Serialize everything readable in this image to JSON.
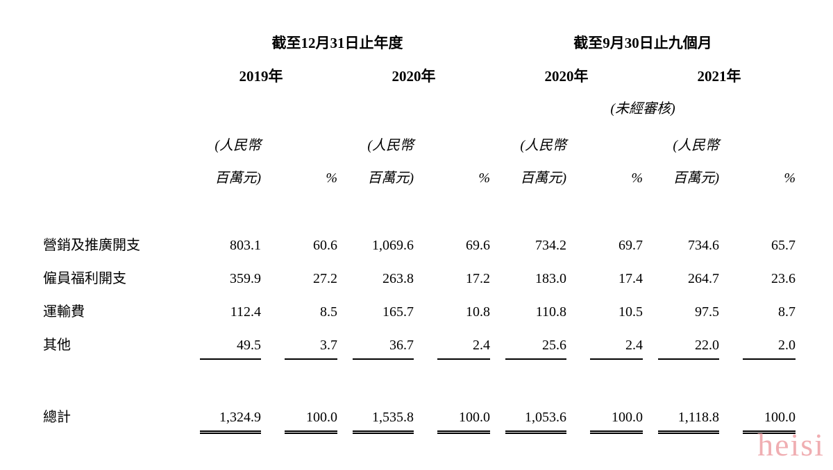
{
  "table": {
    "period_headers": [
      "截至12月31日止年度",
      "截至9月30日止九個月"
    ],
    "year_headers": [
      "2019年",
      "2020年",
      "2020年",
      "2021年"
    ],
    "unaudited_note": "(未經審核)",
    "unit_amount_line1": "(人民幣",
    "unit_amount_line2": "百萬元)",
    "unit_percent": "%",
    "rows": [
      {
        "label": "營銷及推廣開支",
        "values": [
          "803.1",
          "60.6",
          "1,069.6",
          "69.6",
          "734.2",
          "69.7",
          "734.6",
          "65.7"
        ]
      },
      {
        "label": "僱員福利開支",
        "values": [
          "359.9",
          "27.2",
          "263.8",
          "17.2",
          "183.0",
          "17.4",
          "264.7",
          "23.6"
        ]
      },
      {
        "label": "運輸費",
        "values": [
          "112.4",
          "8.5",
          "165.7",
          "10.8",
          "110.8",
          "10.5",
          "97.5",
          "8.7"
        ]
      },
      {
        "label": "其他",
        "values": [
          "49.5",
          "3.7",
          "36.7",
          "2.4",
          "25.6",
          "2.4",
          "22.0",
          "2.0"
        ]
      }
    ],
    "total": {
      "label": "總計",
      "values": [
        "1,324.9",
        "100.0",
        "1,535.8",
        "100.0",
        "1,053.6",
        "100.0",
        "1,118.8",
        "100.0"
      ]
    }
  },
  "watermark": {
    "text": "heisi",
    "color": "#f0aeb2"
  }
}
